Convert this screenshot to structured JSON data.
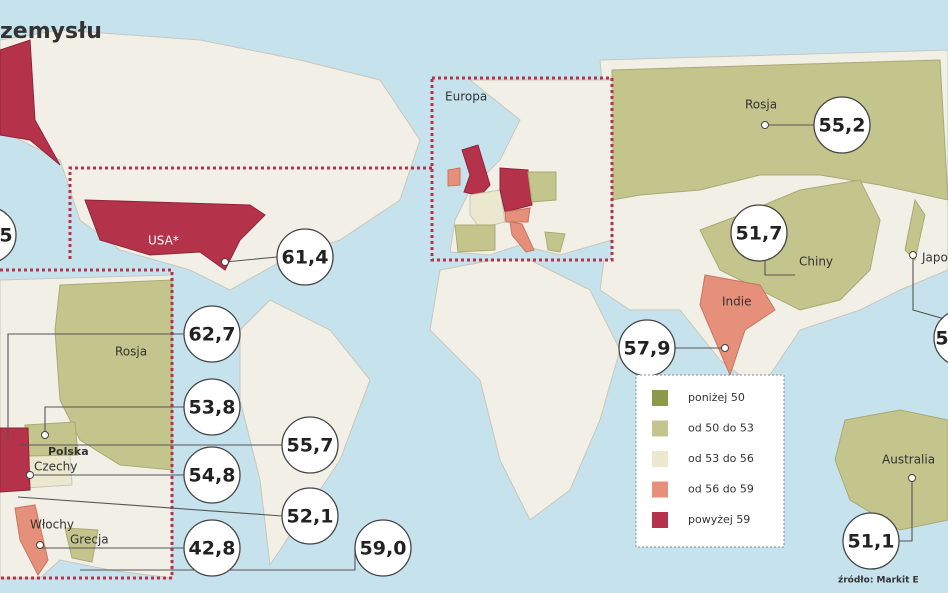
{
  "title": "zemysłu",
  "labels": {
    "europe": "Europa",
    "russia": "Rosja",
    "usa": "USA*",
    "china": "Chiny",
    "japan": "Japo",
    "india": "Indie",
    "australia": "Australia",
    "russia_inset": "Rosja",
    "poland": "Polska",
    "czechia": "Czechy",
    "italy": "Włochy",
    "greece": "Grecja"
  },
  "callouts": {
    "left_cut": "5",
    "usa": "61,4",
    "inset_1": "62,7",
    "inset_2": "53,8",
    "inset_3": "55,7",
    "inset_4": "54,8",
    "inset_5": "52,1",
    "inset_6": "42,8",
    "inset_7": "59,0",
    "india": "57,9",
    "china": "51,7",
    "russia": "55,2",
    "australia": "51,1",
    "right_cut": "5"
  },
  "legend": {
    "items": [
      {
        "label": "poniżej 50",
        "color": "#8b9a4c"
      },
      {
        "label": "od 50 do 53",
        "color": "#c4c58c"
      },
      {
        "label": "od 53 do 56",
        "color": "#ebe8cf"
      },
      {
        "label": "od 56 do 59",
        "color": "#e6907b"
      },
      {
        "label": "powyżej 59",
        "color": "#b5334a"
      }
    ]
  },
  "source": "źródło: Markit E"
}
